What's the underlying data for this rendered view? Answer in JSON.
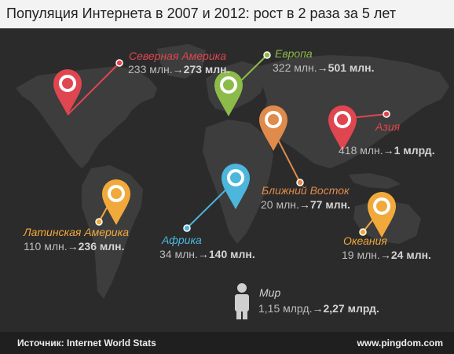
{
  "title": "Популяция Интернета в 2007 и 2012: рост в 2 раза за 5 лет",
  "regions": {
    "north_america": {
      "name": "Северная Америка",
      "from": "233 млн.",
      "arrow": "→",
      "to": "273 млн.",
      "color": "#e0464f"
    },
    "europe": {
      "name": "Европа",
      "from": "322 млн.",
      "arrow": "→",
      "to": "501 млн.",
      "color": "#8dbb4a"
    },
    "asia": {
      "name": "Азия",
      "from": "418 млн.",
      "arrow": "→",
      "to": "1 млрд.",
      "color": "#e0464f"
    },
    "middle_east": {
      "name": "Ближний Восток",
      "from": "20 млн.",
      "arrow": "→",
      "to": "77 млн.",
      "color": "#e08a4c"
    },
    "latin_america": {
      "name": "Латинская Америка",
      "from": "110 млн.",
      "arrow": "→",
      "to": "236 млн.",
      "color": "#f2a93b"
    },
    "africa": {
      "name": "Африка",
      "from": "34 млн.",
      "arrow": "→",
      "to": "140 млн.",
      "color": "#4cb6dc"
    },
    "oceania": {
      "name": "Океания",
      "from": "19 млн.",
      "arrow": "→",
      "to": "24 млн.",
      "color": "#f2a93b"
    },
    "world": {
      "name": "Мир",
      "from": "1,15 млрд.",
      "arrow": "→",
      "to": "2,27 млрд.",
      "color": "#d0d0d0"
    }
  },
  "icons": {
    "pin": "map-pin-icon",
    "person": "person-icon"
  },
  "footer": {
    "source": "Источник: Internet World Stats",
    "url": "www.pingdom.com"
  }
}
